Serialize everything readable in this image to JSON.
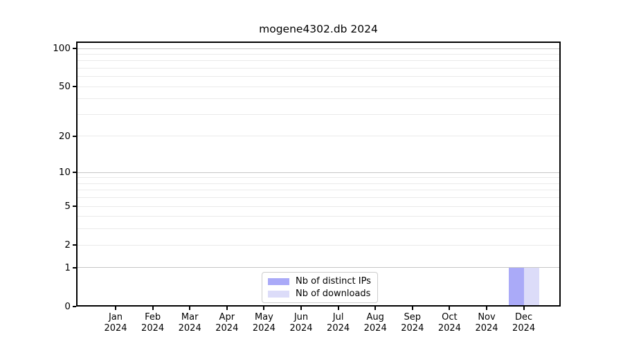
{
  "figure": {
    "title": "mogene4302.db 2024"
  },
  "chart_data": {
    "type": "bar",
    "title": "mogene4302.db 2024",
    "categories": [
      "Jan 2024",
      "Feb 2024",
      "Mar 2024",
      "Apr 2024",
      "May 2024",
      "Jun 2024",
      "Jul 2024",
      "Aug 2024",
      "Sep 2024",
      "Oct 2024",
      "Nov 2024",
      "Dec 2024"
    ],
    "x_tick_labels": [
      {
        "month": "Jan",
        "year": "2024"
      },
      {
        "month": "Feb",
        "year": "2024"
      },
      {
        "month": "Mar",
        "year": "2024"
      },
      {
        "month": "Apr",
        "year": "2024"
      },
      {
        "month": "May",
        "year": "2024"
      },
      {
        "month": "Jun",
        "year": "2024"
      },
      {
        "month": "Jul",
        "year": "2024"
      },
      {
        "month": "Aug",
        "year": "2024"
      },
      {
        "month": "Sep",
        "year": "2024"
      },
      {
        "month": "Oct",
        "year": "2024"
      },
      {
        "month": "Nov",
        "year": "2024"
      },
      {
        "month": "Dec",
        "year": "2024"
      }
    ],
    "series": [
      {
        "name": "Nb of distinct IPs",
        "color": "#aaaaf8",
        "values": [
          0,
          0,
          0,
          0,
          0,
          0,
          0,
          0,
          0,
          0,
          0,
          1
        ]
      },
      {
        "name": "Nb of downloads",
        "color": "#dcdcf9",
        "values": [
          0,
          0,
          0,
          0,
          0,
          0,
          0,
          0,
          0,
          0,
          0,
          1
        ]
      }
    ],
    "yscale": "log1p",
    "ylim": [
      0,
      113
    ],
    "yticks": [
      0,
      1,
      2,
      5,
      10,
      20,
      50,
      100
    ],
    "grid": {
      "major_lines": [
        1,
        10,
        100
      ],
      "minor_lines": [
        2,
        3,
        4,
        5,
        6,
        7,
        8,
        9,
        20,
        30,
        40,
        50,
        60,
        70,
        80,
        90
      ],
      "major_color": "#c6c6c6",
      "minor_color": "#eaeaea"
    },
    "legend": {
      "position": "bottom-center",
      "entries": [
        "Nb of distinct IPs",
        "Nb of downloads"
      ]
    },
    "axis_color": "#000000"
  }
}
